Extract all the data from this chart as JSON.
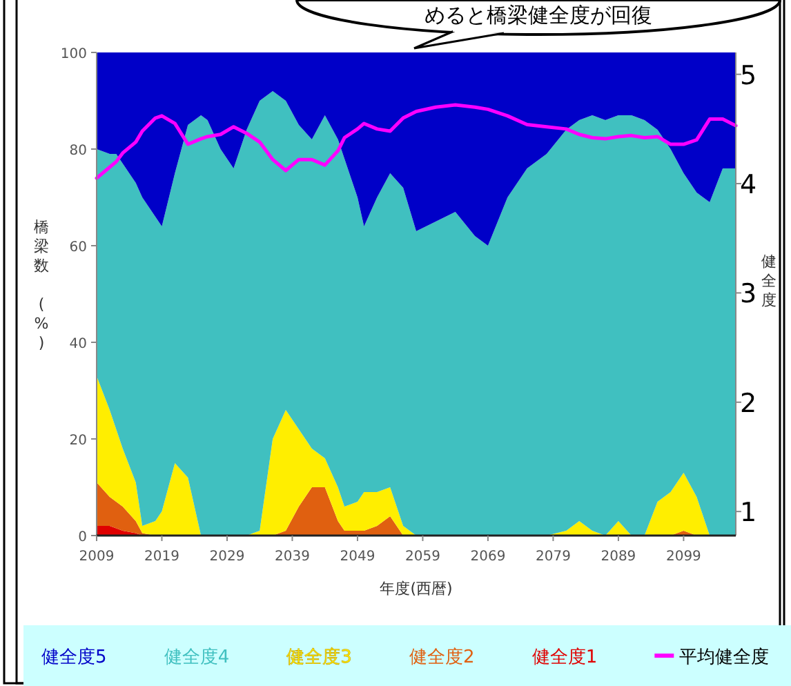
{
  "chart_data": {
    "type": "area",
    "stacked": true,
    "x": [
      2009,
      2011,
      2012,
      2013,
      2015,
      2016,
      2018,
      2019,
      2021,
      2023,
      2025,
      2026,
      2028,
      2030,
      2032,
      2034,
      2036,
      2038,
      2040,
      2042,
      2044,
      2046,
      2047,
      2049,
      2050,
      2052,
      2054,
      2056,
      2058,
      2061,
      2064,
      2067,
      2069,
      2072,
      2075,
      2078,
      2081,
      2083,
      2085,
      2087,
      2089,
      2091,
      2093,
      2095,
      2097,
      2099,
      2101,
      2103,
      2105,
      2107
    ],
    "series": [
      {
        "name": "健全度1",
        "color": "#e00000",
        "values": [
          2,
          2,
          1.5,
          1,
          0.5,
          0,
          0,
          0,
          0,
          0,
          0,
          0,
          0,
          0,
          0,
          0,
          0,
          0,
          0,
          0,
          0,
          0,
          0,
          0,
          0,
          0,
          0,
          0,
          0,
          0,
          0,
          0,
          0,
          0,
          0,
          0,
          0,
          0,
          0,
          0,
          0,
          0,
          0,
          0,
          0,
          0,
          0,
          0,
          0,
          0
        ]
      },
      {
        "name": "健全度2",
        "color": "#e06010",
        "values": [
          9,
          6,
          5.5,
          5,
          2.5,
          0.5,
          0,
          0,
          0,
          0,
          0,
          0,
          0,
          0,
          0,
          0,
          0,
          1,
          6,
          10,
          10,
          3,
          1,
          1,
          1,
          2,
          4,
          0,
          0,
          0,
          0,
          0,
          0,
          0,
          0,
          0,
          0,
          0,
          0,
          0,
          0,
          0,
          0,
          0,
          0,
          1,
          0,
          0,
          0,
          0
        ]
      },
      {
        "name": "健全度3",
        "color": "#ffee00",
        "values": [
          22,
          18,
          15,
          12,
          8,
          1.5,
          3,
          5,
          15,
          12,
          0,
          0,
          0,
          0,
          0,
          1,
          20,
          25,
          16,
          8,
          6,
          7,
          5,
          6,
          8,
          7,
          6,
          2,
          0,
          0,
          0,
          0,
          0,
          0,
          0,
          0,
          1,
          3,
          1,
          0,
          3,
          0,
          0,
          7,
          9,
          12,
          8,
          0,
          0,
          0
        ]
      },
      {
        "name": "健全度4",
        "color": "#40c0c0",
        "values": [
          47,
          53,
          57,
          59,
          62,
          68,
          63,
          59,
          60,
          73,
          87,
          86,
          80,
          76,
          84,
          89,
          72,
          64,
          63,
          64,
          71,
          72,
          72,
          63,
          55,
          61,
          65,
          70,
          63,
          65,
          67,
          62,
          60,
          70,
          76,
          79,
          83,
          83,
          86,
          86,
          84,
          87,
          86,
          77,
          71,
          62,
          63,
          69,
          76,
          76
        ]
      },
      {
        "name": "健全度5",
        "color": "#0000c8",
        "values": [
          20,
          21,
          21,
          23,
          27,
          30,
          34,
          36,
          25,
          15,
          13,
          14,
          20,
          24,
          16,
          10,
          8,
          10,
          15,
          18,
          13,
          18,
          22,
          30,
          36,
          30,
          25,
          28,
          37,
          35,
          33,
          38,
          40,
          30,
          24,
          21,
          16,
          14,
          13,
          14,
          13,
          13,
          14,
          16,
          20,
          25,
          29,
          31,
          24,
          24
        ]
      },
      {
        "name": "平均健全度",
        "type": "line",
        "axis": "y2",
        "color": "#ff00ff",
        "values": [
          4.05,
          4.15,
          4.2,
          4.28,
          4.38,
          4.48,
          4.6,
          4.62,
          4.55,
          4.36,
          4.41,
          4.43,
          4.45,
          4.52,
          4.46,
          4.38,
          4.22,
          4.12,
          4.22,
          4.22,
          4.17,
          4.3,
          4.42,
          4.5,
          4.55,
          4.5,
          4.48,
          4.6,
          4.66,
          4.7,
          4.72,
          4.7,
          4.68,
          4.62,
          4.54,
          4.52,
          4.5,
          4.45,
          4.42,
          4.41,
          4.43,
          4.44,
          4.42,
          4.43,
          4.36,
          4.36,
          4.4,
          4.59,
          4.59,
          4.53
        ]
      }
    ],
    "xlim": [
      2009,
      2107
    ],
    "xticks": [
      2009,
      2019,
      2029,
      2039,
      2049,
      2059,
      2069,
      2079,
      2089,
      2099
    ],
    "ylim": [
      0,
      100
    ],
    "yticks": [
      0,
      20,
      40,
      60,
      80,
      100
    ],
    "y2lim": [
      0.78,
      5.2
    ],
    "y2ticks": [
      1,
      2,
      3,
      4,
      5
    ],
    "xlabel": "年度(西暦)",
    "ylabel": "橋梁数 (%)",
    "y2label": "健全度",
    "legend": "bottom",
    "annotations": [
      "めると橋梁健全度が回復"
    ]
  }
}
